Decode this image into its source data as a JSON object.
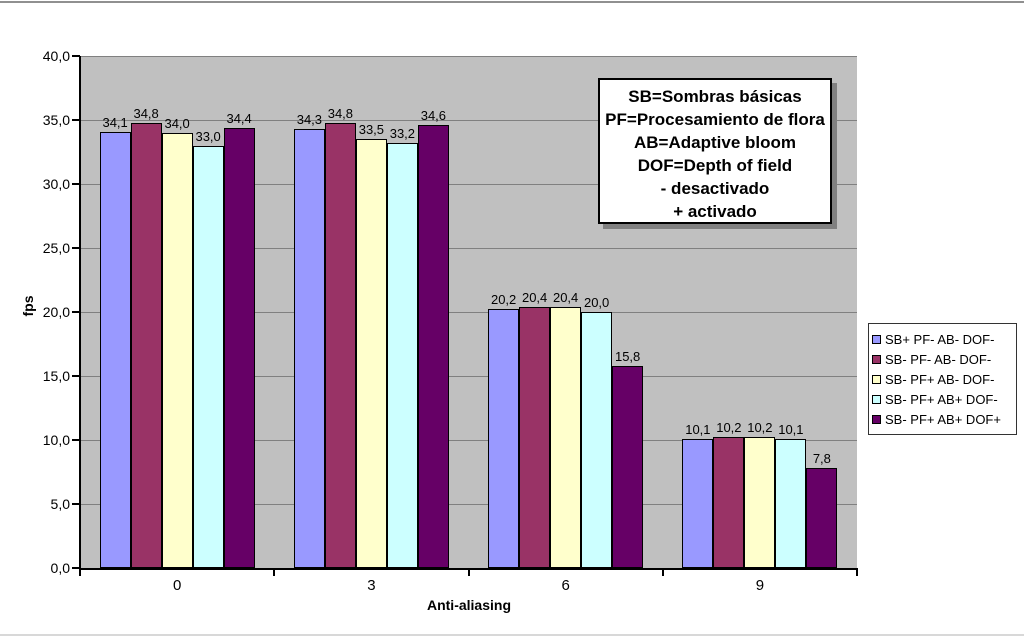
{
  "page": {
    "background": "#FFFFFF",
    "top_border_color": "#909090",
    "bottom_border_color": "#D8D8D8"
  },
  "chart_data": {
    "type": "bar",
    "title": "",
    "xlabel": "Anti-aliasing",
    "ylabel": "fps",
    "ylim": [
      0,
      40
    ],
    "ytick_step": 5,
    "ytick_labels": [
      "0,0",
      "5,0",
      "10,0",
      "15,0",
      "20,0",
      "25,0",
      "30,0",
      "35,0",
      "40,0"
    ],
    "categories": [
      "0",
      "3",
      "6",
      "9"
    ],
    "series": [
      {
        "name": "SB+ PF- AB- DOF-",
        "color": "#9999FF",
        "values": [
          34.1,
          34.3,
          20.2,
          10.1
        ],
        "labels": [
          "34,1",
          "34,3",
          "20,2",
          "10,1"
        ]
      },
      {
        "name": "SB- PF- AB- DOF-",
        "color": "#993366",
        "values": [
          34.8,
          34.8,
          20.4,
          10.2
        ],
        "labels": [
          "34,8",
          "34,8",
          "20,4",
          "10,2"
        ]
      },
      {
        "name": "SB- PF+ AB- DOF-",
        "color": "#FFFFCC",
        "values": [
          34.0,
          33.5,
          20.4,
          10.2
        ],
        "labels": [
          "34,0",
          "33,5",
          "20,4",
          "10,2"
        ]
      },
      {
        "name": "SB- PF+ AB+ DOF-",
        "color": "#CCFFFF",
        "values": [
          33.0,
          33.2,
          20.0,
          10.1
        ],
        "labels": [
          "33,0",
          "33,2",
          "20,0",
          "10,1"
        ]
      },
      {
        "name": "SB- PF+ AB+ DOF+",
        "color": "#660066",
        "values": [
          34.4,
          34.6,
          15.8,
          7.8
        ],
        "labels": [
          "34,4",
          "34,6",
          "15,8",
          "7,8"
        ]
      }
    ],
    "grid": true,
    "legend_position": "right",
    "plot_bg": "#C0C0C0",
    "gridline_color": "#808080",
    "axis_color": "#000000",
    "annotation": {
      "lines": [
        "SB=Sombras básicas",
        "PF=Procesamiento de flora",
        "AB=Adaptive bloom",
        "DOF=Depth of field",
        "- desactivado",
        "+ activado"
      ],
      "bg": "#FFFFFF",
      "border": "#000000",
      "shadow": "#808080"
    }
  }
}
